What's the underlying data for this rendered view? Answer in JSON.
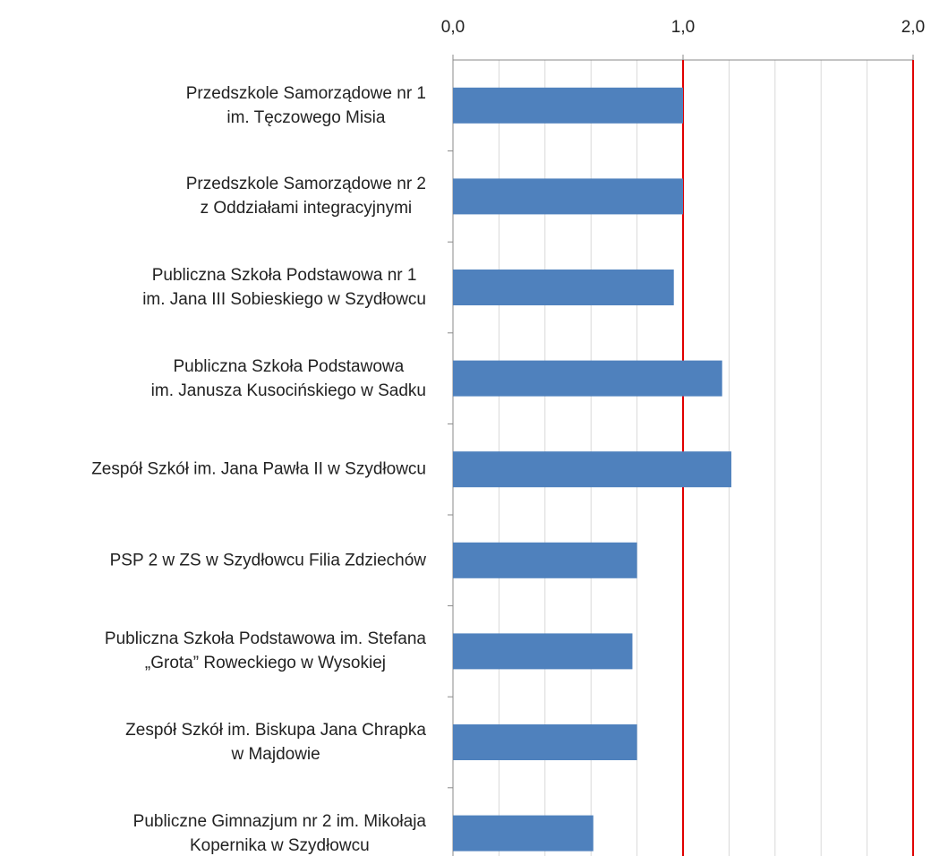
{
  "chart_data": {
    "type": "hbar",
    "categories": [
      "Przedszkole Samorządowe nr 1\nim. Tęczowego Misia",
      "Przedszkole Samorządowe nr 2\nz Oddziałami integracyjnymi",
      "Publiczna Szkoła Podstawowa nr 1\nim. Jana III Sobieskiego w Szydłowcu",
      "Publiczna Szkoła Podstawowa\nim. Janusza Kusocińskiego w Sadku",
      "Zespół Szkół im. Jana Pawła II w Szydłowcu",
      "PSP 2 w ZS w Szydłowcu Filia Zdziechów",
      "Publiczna Szkoła Podstawowa im. Stefana\n„Grota” Roweckiego w Wysokiej",
      "Zespół Szkół im. Biskupa Jana Chrapka\nw Majdowie",
      "Publiczne Gimnazjum nr 2 im. Mikołaja\nKopernika w Szydłowcu"
    ],
    "values": [
      1.0,
      1.0,
      0.96,
      1.17,
      1.21,
      0.8,
      0.78,
      0.8,
      0.61
    ],
    "color": "#4f81bd",
    "xlim": [
      0,
      2
    ],
    "xticks": [
      {
        "value": 0,
        "label": "0,0"
      },
      {
        "value": 1,
        "label": "1,0"
      },
      {
        "value": 2,
        "label": "2,0"
      }
    ],
    "minor_xticks": [
      0.2,
      0.4,
      0.6,
      0.8,
      1.2,
      1.4,
      1.6,
      1.8
    ],
    "reference_lines": [
      1,
      2
    ],
    "reference_color": "#e00000",
    "grid": true
  }
}
